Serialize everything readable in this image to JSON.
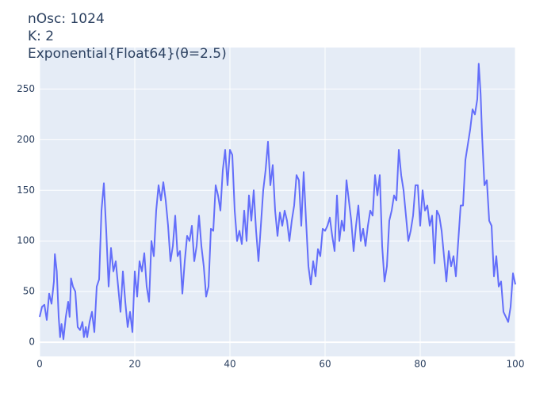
{
  "chart_data": {
    "type": "line",
    "title": [
      "nOsc: 1024",
      "K: 2",
      "Exponential{Float64}(θ=2.5)"
    ],
    "x": [
      0,
      0.5,
      1,
      1.5,
      2,
      2.5,
      3,
      3.2,
      3.6,
      4,
      4.3,
      4.6,
      5,
      5.5,
      6,
      6.3,
      6.6,
      7,
      7.5,
      8,
      8.5,
      9,
      9.3,
      9.7,
      10,
      10.5,
      11,
      11.5,
      12,
      12.5,
      13,
      13.5,
      14,
      14.5,
      15,
      15.5,
      16,
      16.5,
      17,
      17.5,
      18,
      18.5,
      19,
      19.5,
      20,
      20.5,
      21,
      21.5,
      22,
      22.5,
      23,
      23.5,
      24,
      24.5,
      25,
      25.5,
      26,
      26.5,
      27,
      27.5,
      28,
      28.5,
      29,
      29.5,
      30,
      30.5,
      31,
      31.5,
      32,
      32.5,
      33,
      33.5,
      34,
      34.5,
      35,
      35.5,
      36,
      36.5,
      37,
      37.5,
      38,
      38.5,
      39,
      39.5,
      40,
      40.5,
      41,
      41.5,
      42,
      42.5,
      43,
      43.5,
      44,
      44.5,
      45,
      45.5,
      46,
      46.5,
      47,
      47.5,
      48,
      48.5,
      49,
      49.5,
      50,
      50.5,
      51,
      51.5,
      52,
      52.5,
      53,
      53.5,
      54,
      54.5,
      55,
      55.5,
      56,
      56.5,
      57,
      57.5,
      58,
      58.5,
      59,
      59.5,
      60,
      60.5,
      61,
      61.5,
      62,
      62.5,
      63,
      63.5,
      64,
      64.5,
      65,
      65.5,
      66,
      66.5,
      67,
      67.5,
      68,
      68.5,
      69,
      69.5,
      70,
      70.5,
      71,
      71.5,
      72,
      72.5,
      73,
      73.5,
      74,
      74.5,
      75,
      75.5,
      76,
      76.5,
      77,
      77.5,
      78,
      78.5,
      79,
      79.5,
      80,
      80.5,
      81,
      81.5,
      82,
      82.5,
      83,
      83.5,
      84,
      84.5,
      85,
      85.5,
      86,
      86.5,
      87,
      87.5,
      88,
      88.5,
      89,
      89.5,
      90,
      90.5,
      91,
      91.5,
      92,
      92.3,
      92.7,
      93,
      93.5,
      94,
      94.5,
      95,
      95.5,
      96,
      96.5,
      97,
      97.5,
      98,
      98.5,
      99,
      99.5,
      100
    ],
    "series": [
      {
        "color": "#636efa",
        "values": [
          25,
          35,
          37,
          22,
          48,
          38,
          60,
          87,
          70,
          25,
          5,
          18,
          3,
          25,
          40,
          25,
          63,
          55,
          50,
          15,
          12,
          20,
          5,
          15,
          5,
          20,
          30,
          10,
          55,
          62,
          130,
          157,
          110,
          55,
          93,
          70,
          80,
          55,
          30,
          70,
          40,
          15,
          30,
          10,
          70,
          45,
          80,
          70,
          88,
          55,
          40,
          100,
          85,
          130,
          155,
          140,
          158,
          140,
          115,
          80,
          95,
          125,
          85,
          90,
          48,
          80,
          105,
          100,
          115,
          80,
          95,
          125,
          95,
          75,
          45,
          55,
          112,
          110,
          155,
          145,
          130,
          170,
          190,
          155,
          190,
          185,
          130,
          100,
          110,
          97,
          130,
          100,
          145,
          120,
          150,
          110,
          80,
          115,
          150,
          170,
          198,
          155,
          175,
          130,
          105,
          128,
          115,
          130,
          120,
          100,
          120,
          135,
          165,
          160,
          115,
          168,
          120,
          75,
          57,
          80,
          65,
          92,
          85,
          112,
          110,
          115,
          123,
          105,
          90,
          145,
          100,
          120,
          110,
          160,
          140,
          120,
          90,
          115,
          135,
          100,
          112,
          95,
          115,
          130,
          125,
          165,
          145,
          165,
          95,
          60,
          75,
          120,
          130,
          145,
          140,
          190,
          165,
          150,
          125,
          100,
          110,
          125,
          155,
          155,
          115,
          150,
          130,
          135,
          115,
          125,
          78,
          130,
          125,
          110,
          85,
          60,
          90,
          75,
          85,
          65,
          100,
          135,
          135,
          180,
          195,
          210,
          230,
          225,
          240,
          275,
          245,
          205,
          155,
          160,
          120,
          115,
          65,
          85,
          55,
          60,
          30,
          25,
          20,
          35,
          68,
          57
        ]
      }
    ],
    "xlim": [
      0,
      100
    ],
    "ylim": [
      -14,
      291
    ],
    "xticks": [
      0,
      20,
      40,
      60,
      80,
      100
    ],
    "yticks": [
      0,
      50,
      100,
      150,
      200,
      250
    ],
    "grid": true
  }
}
